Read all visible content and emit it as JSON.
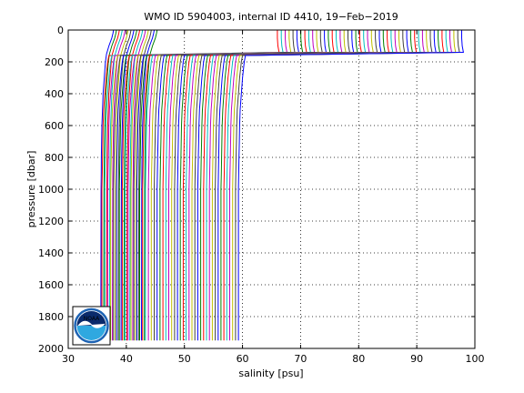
{
  "chart_data": {
    "type": "line",
    "title": "WMO ID 5904003, internal ID 4410, 19−Feb−2019",
    "xlabel": "salinity [psu]",
    "ylabel": "pressure [dbar]",
    "xlim": [
      30,
      100
    ],
    "ylim": [
      0,
      2000
    ],
    "y_reversed": true,
    "grid": "dotted",
    "xticks": [
      "30",
      "40",
      "50",
      "60",
      "70",
      "80",
      "90",
      "100"
    ],
    "yticks": [
      "0",
      "200",
      "400",
      "600",
      "800",
      "1000",
      "1200",
      "1400",
      "1600",
      "1800",
      "2000"
    ],
    "offset_step": 0.5,
    "profile_count": 64,
    "base_profile": {
      "pressure": [
        0,
        20,
        50,
        100,
        150,
        200,
        300,
        400,
        500,
        600,
        700,
        800,
        900,
        1000,
        1950
      ],
      "salinity": [
        37.8,
        37.7,
        37.5,
        37.0,
        36.6,
        36.4,
        36.2,
        36.0,
        35.9,
        35.8,
        35.75,
        35.7,
        35.68,
        35.65,
        35.6
      ]
    },
    "wide_profile_start_index": 16,
    "wide_profile": {
      "pressure": [
        0,
        50,
        100,
        140,
        160,
        200,
        300,
        400,
        500,
        600,
        700,
        800,
        900,
        1000,
        1950
      ],
      "salinity": [
        66.0,
        66.0,
        66.1,
        66.3,
        37.0,
        36.8,
        36.5,
        36.3,
        36.1,
        36.0,
        35.95,
        35.9,
        35.85,
        35.8,
        35.8
      ]
    },
    "colors": [
      "#0000ff",
      "#008000",
      "#ff0000",
      "#00bfbf",
      "#bf00bf",
      "#bfbf00",
      "#404040"
    ]
  },
  "logo": {
    "text": "NOAA",
    "colors": {
      "ring": "#1d63b4",
      "top": "#0a2a6b",
      "bottom": "#2fa8e0"
    }
  }
}
